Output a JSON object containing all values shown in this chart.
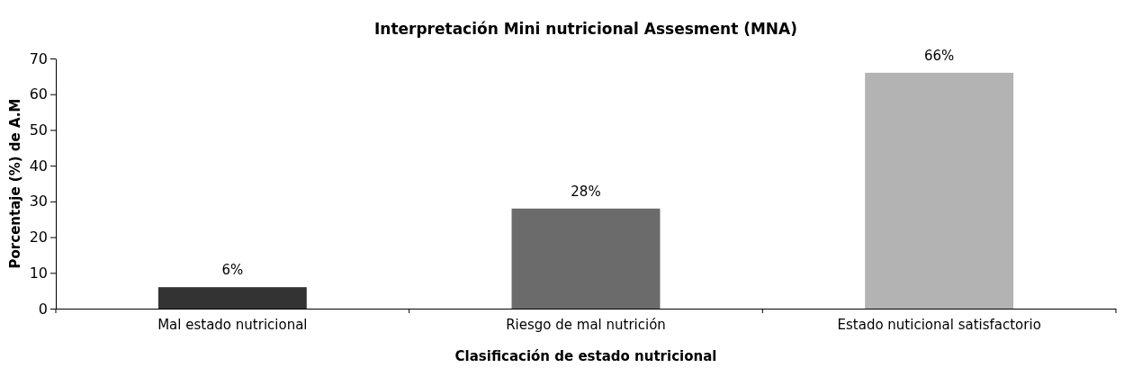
{
  "chart_data": {
    "type": "bar",
    "title": "Interpretación Mini nutricional Assesment (MNA)",
    "xlabel": "Clasificación de estado nutricional",
    "ylabel": "Porcentaje (%) de A.M",
    "categories": [
      "Mal estado nutricional",
      "Riesgo de mal nutrición",
      "Estado nuticional satisfactorio"
    ],
    "values": [
      6,
      28,
      66
    ],
    "colors": [
      "#333333",
      "#6b6b6b",
      "#b3b3b3"
    ],
    "value_labels": [
      "6%",
      "28%",
      "66%"
    ],
    "ylim": [
      0,
      70
    ],
    "yticks": [
      0,
      10,
      20,
      30,
      40,
      50,
      60,
      70
    ],
    "grid": false
  }
}
